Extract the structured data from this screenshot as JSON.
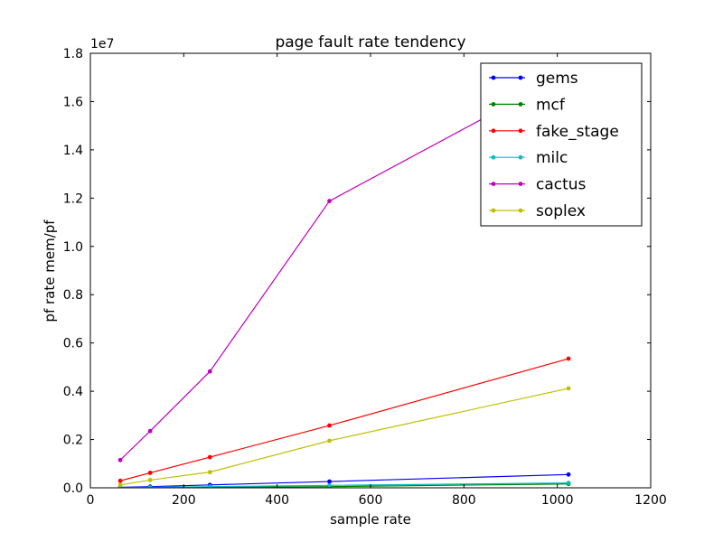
{
  "chart_data": {
    "type": "line",
    "title": "page fault rate tendency",
    "xlabel": "sample rate",
    "ylabel": "pf rate mem/pf",
    "y_scale_label": "1e7",
    "xlim": [
      0,
      1200
    ],
    "ylim": [
      0,
      18000000
    ],
    "x_ticks": [
      0,
      200,
      400,
      600,
      800,
      1000,
      1200
    ],
    "x_tick_labels": [
      "0",
      "200",
      "400",
      "600",
      "800",
      "1000",
      "1200"
    ],
    "y_ticks": [
      0,
      2000000,
      4000000,
      6000000,
      8000000,
      10000000,
      12000000,
      14000000,
      16000000,
      18000000
    ],
    "y_tick_labels": [
      "0.0",
      "0.2",
      "0.4",
      "0.6",
      "0.8",
      "1.0",
      "1.2",
      "1.4",
      "1.6",
      "1.8"
    ],
    "grid": false,
    "legend_position": "top-right",
    "x": [
      64,
      128,
      256,
      512,
      1024
    ],
    "series": [
      {
        "name": "gems",
        "color": "#0000ff",
        "values": [
          20000,
          50000,
          120000,
          260000,
          550000
        ]
      },
      {
        "name": "mcf",
        "color": "#008000",
        "values": [
          3000,
          8000,
          20000,
          50000,
          160000
        ]
      },
      {
        "name": "fake_stage",
        "color": "#ff0000",
        "values": [
          290000,
          620000,
          1270000,
          2580000,
          5350000
        ]
      },
      {
        "name": "milc",
        "color": "#00bfbf",
        "values": [
          10000,
          20000,
          50000,
          100000,
          200000
        ]
      },
      {
        "name": "cactus",
        "color": "#bf00bf",
        "values": [
          1150000,
          2350000,
          4820000,
          11880000,
          17200000
        ]
      },
      {
        "name": "soplex",
        "color": "#bfbf00",
        "values": [
          120000,
          320000,
          650000,
          1950000,
          4120000
        ]
      }
    ]
  }
}
